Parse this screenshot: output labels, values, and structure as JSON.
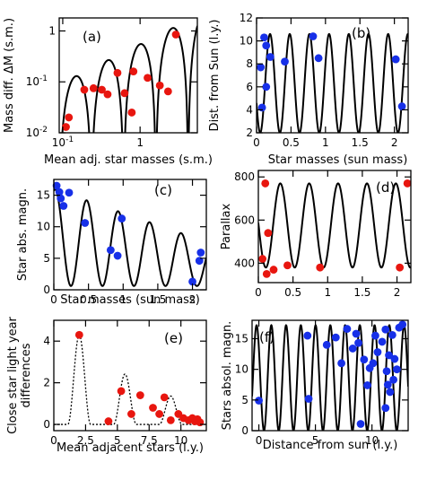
{
  "colors": {
    "red": "#e8160f",
    "blue": "#1730e8",
    "curve": "#000000"
  },
  "chart_data": [
    {
      "id": "a",
      "tag": "(a)",
      "type": "scatter",
      "xscale": "log",
      "yscale": "log",
      "xlabel": "Mean adj. star masses (s.m.)",
      "ylabel": "Mass diff. ΔM (s.m.)",
      "xlim": [
        0.09,
        5.5
      ],
      "ylim": [
        0.01,
        1.8
      ],
      "xticks": [
        {
          "v": 0.1,
          "label": "10",
          "sup": "-1"
        },
        {
          "v": 1,
          "label": "1",
          "sup": ""
        }
      ],
      "yticks": [
        {
          "v": 0.01,
          "label": "10",
          "sup": "-2"
        },
        {
          "v": 0.1,
          "label": "10",
          "sup": "-1"
        },
        {
          "v": 1,
          "label": "1",
          "sup": ""
        }
      ],
      "curve": {
        "kind": "log-arches",
        "period": 0.4167,
        "offset": 0.0,
        "amp": 2.0,
        "floor": 0.0063
      },
      "series": [
        {
          "color": "red",
          "points": [
            [
              0.11,
              0.013
            ],
            [
              0.12,
              0.02
            ],
            [
              0.19,
              0.07
            ],
            [
              0.25,
              0.075
            ],
            [
              0.32,
              0.07
            ],
            [
              0.38,
              0.057
            ],
            [
              0.51,
              0.15
            ],
            [
              0.63,
              0.06
            ],
            [
              0.78,
              0.025
            ],
            [
              0.82,
              0.16
            ],
            [
              1.25,
              0.12
            ],
            [
              1.8,
              0.085
            ],
            [
              2.3,
              0.065
            ],
            [
              2.9,
              0.85
            ]
          ]
        }
      ]
    },
    {
      "id": "b",
      "tag": "(b)",
      "type": "scatter",
      "xlabel": "Star masses (sun mass)",
      "ylabel": "Dist. from Sun (l.y.)",
      "xlim": [
        0,
        2.2
      ],
      "ylim": [
        2,
        12
      ],
      "xticks": [
        {
          "v": 0,
          "label": "0"
        },
        {
          "v": 0.5,
          "label": "0.5"
        },
        {
          "v": 1,
          "label": "1"
        },
        {
          "v": 1.5,
          "label": "1.5"
        },
        {
          "v": 2,
          "label": "2"
        }
      ],
      "yticks": [
        {
          "v": 2,
          "label": "2"
        },
        {
          "v": 4,
          "label": "4"
        },
        {
          "v": 6,
          "label": "6"
        },
        {
          "v": 8,
          "label": "8"
        },
        {
          "v": 10,
          "label": "10"
        },
        {
          "v": 12,
          "label": "12"
        }
      ],
      "curve": {
        "kind": "wave",
        "period": 0.2857,
        "phase": -0.09,
        "mid": 6.3,
        "amp": 4.3
      },
      "series": [
        {
          "color": "blue",
          "points": [
            [
              0.06,
              7.7
            ],
            [
              0.08,
              4.2
            ],
            [
              0.11,
              10.3
            ],
            [
              0.14,
              9.6
            ],
            [
              0.14,
              6.0
            ],
            [
              0.2,
              8.6
            ],
            [
              0.41,
              8.2
            ],
            [
              0.82,
              10.4
            ],
            [
              0.9,
              8.5
            ],
            [
              2.02,
              8.4
            ],
            [
              2.11,
              4.3
            ]
          ]
        }
      ]
    },
    {
      "id": "c",
      "tag": "(c)",
      "type": "scatter",
      "xlabel": "Star masses (sun mass)",
      "ylabel": "Star abs. magn.",
      "xlim": [
        0,
        2.2
      ],
      "ylim": [
        0,
        17.5
      ],
      "xticks": [
        {
          "v": 0,
          "label": "0"
        },
        {
          "v": 0.5,
          "label": "0.5"
        },
        {
          "v": 1,
          "label": "1"
        },
        {
          "v": 1.5,
          "label": "1.5"
        },
        {
          "v": 2,
          "label": "2"
        }
      ],
      "yticks": [
        {
          "v": 0,
          "label": "0"
        },
        {
          "v": 5,
          "label": "5"
        },
        {
          "v": 10,
          "label": "10"
        },
        {
          "v": 15,
          "label": "15"
        }
      ],
      "curve": {
        "kind": "decay-wave",
        "period": 0.4545,
        "phase": 0.0,
        "top0": 16.0,
        "top1": 7.6,
        "bottom": 0.6
      },
      "series": [
        {
          "color": "blue",
          "points": [
            [
              0.04,
              16.5
            ],
            [
              0.08,
              15.5
            ],
            [
              0.1,
              14.5
            ],
            [
              0.14,
              13.3
            ],
            [
              0.22,
              15.4
            ],
            [
              0.45,
              10.6
            ],
            [
              0.82,
              6.3
            ],
            [
              0.92,
              5.4
            ],
            [
              0.98,
              11.3
            ],
            [
              2.0,
              1.3
            ],
            [
              2.1,
              4.6
            ],
            [
              2.12,
              5.9
            ]
          ]
        }
      ]
    },
    {
      "id": "d",
      "tag": "(d)",
      "type": "scatter",
      "xlabel": "",
      "ylabel": "Parallax",
      "xlim": [
        0,
        2.2
      ],
      "ylim": [
        310,
        830
      ],
      "xticks": [
        {
          "v": 0,
          "label": "0"
        },
        {
          "v": 0.5,
          "label": "0.5"
        },
        {
          "v": 1,
          "label": "1"
        },
        {
          "v": 1.5,
          "label": "1.5"
        },
        {
          "v": 2,
          "label": "2"
        }
      ],
      "yticks": [
        {
          "v": 400,
          "label": "400"
        },
        {
          "v": 600,
          "label": "600"
        },
        {
          "v": 800,
          "label": "800"
        }
      ],
      "curve": {
        "kind": "wave",
        "period": 0.4167,
        "phase": -0.1,
        "mid": 575,
        "amp": 195
      },
      "series": [
        {
          "color": "red",
          "points": [
            [
              0.06,
              420
            ],
            [
              0.1,
              770
            ],
            [
              0.12,
              350
            ],
            [
              0.14,
              540
            ],
            [
              0.22,
              370
            ],
            [
              0.42,
              390
            ],
            [
              0.89,
              380
            ],
            [
              2.04,
              380
            ],
            [
              2.15,
              770
            ]
          ]
        }
      ]
    },
    {
      "id": "e",
      "tag": "(e)",
      "type": "scatter",
      "xlabel": "Mean adjacent stars (l.y.)",
      "ylabel": "Close star light year differences",
      "xlim": [
        0,
        12
      ],
      "ylim": [
        -0.3,
        5.0
      ],
      "xticks": [
        {
          "v": 0,
          "label": "0"
        },
        {
          "v": 2.5,
          "label": "2.5"
        },
        {
          "v": 5,
          "label": "5"
        },
        {
          "v": 7.5,
          "label": "7.5"
        },
        {
          "v": 10,
          "label": "10"
        }
      ],
      "yticks": [
        {
          "v": 0,
          "label": "0"
        },
        {
          "v": 2,
          "label": "2"
        },
        {
          "v": 4,
          "label": "4"
        }
      ],
      "curve": {
        "kind": "damped-arches",
        "period": 1.8,
        "first_peak": 2.0,
        "peak_height": 4.3,
        "decay": 0.75
      },
      "series": [
        {
          "color": "red",
          "points": [
            [
              2.0,
              4.3
            ],
            [
              4.3,
              0.15
            ],
            [
              5.3,
              1.6
            ],
            [
              6.1,
              0.5
            ],
            [
              6.8,
              1.4
            ],
            [
              7.8,
              0.8
            ],
            [
              8.3,
              0.5
            ],
            [
              8.7,
              1.3
            ],
            [
              9.2,
              0.2
            ],
            [
              9.8,
              0.5
            ],
            [
              10.2,
              0.3
            ],
            [
              10.6,
              0.2
            ],
            [
              10.9,
              0.3
            ],
            [
              11.1,
              0.15
            ],
            [
              11.3,
              0.25
            ],
            [
              11.5,
              0.1
            ]
          ]
        }
      ]
    },
    {
      "id": "f",
      "tag": "(f)",
      "type": "scatter",
      "xlabel": "Distance from sun (l.y.)",
      "ylabel": "Stars absol. magn.",
      "xlim": [
        -0.6,
        13.2
      ],
      "ylim": [
        0,
        18
      ],
      "xticks": [
        {
          "v": 0,
          "label": "0"
        },
        {
          "v": 5,
          "label": "5"
        },
        {
          "v": 10,
          "label": "10"
        }
      ],
      "yticks": [
        {
          "v": 0,
          "label": "0"
        },
        {
          "v": 5,
          "label": "5"
        },
        {
          "v": 10,
          "label": "10"
        },
        {
          "v": 15,
          "label": "15"
        }
      ],
      "curve": {
        "kind": "wave",
        "period": 1.304,
        "phase": -0.2,
        "mid": 8.6,
        "amp": 8.6
      },
      "series": [
        {
          "color": "blue",
          "points": [
            [
              0,
              4.9
            ],
            [
              4.3,
              15.5
            ],
            [
              4.4,
              5.2
            ],
            [
              6.0,
              14.0
            ],
            [
              6.8,
              15.2
            ],
            [
              7.3,
              11.0
            ],
            [
              7.8,
              16.6
            ],
            [
              8.3,
              13.4
            ],
            [
              8.6,
              15.8
            ],
            [
              8.8,
              14.3
            ],
            [
              9.3,
              11.6
            ],
            [
              9.6,
              7.4
            ],
            [
              9.8,
              10.2
            ],
            [
              10.1,
              11.0
            ],
            [
              10.3,
              15.5
            ],
            [
              10.5,
              12.8
            ],
            [
              10.9,
              14.5
            ],
            [
              11.2,
              16.5
            ],
            [
              11.3,
              9.7
            ],
            [
              11.4,
              7.5
            ],
            [
              11.5,
              12.3
            ],
            [
              11.6,
              6.3
            ],
            [
              11.8,
              15.6
            ],
            [
              11.9,
              8.3
            ],
            [
              12.0,
              11.7
            ],
            [
              12.2,
              10.0
            ],
            [
              12.4,
              16.8
            ],
            [
              12.7,
              17.3
            ],
            [
              11.2,
              3.7
            ],
            [
              9.0,
              1.1
            ]
          ]
        }
      ]
    }
  ]
}
